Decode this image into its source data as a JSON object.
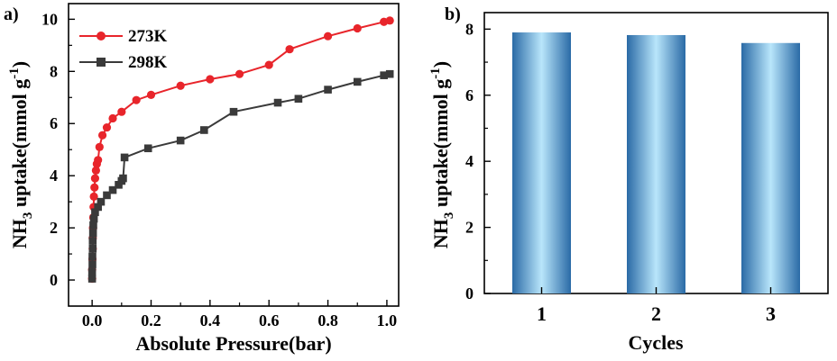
{
  "chart_data": [
    {
      "panel_label": "a)",
      "type": "line",
      "xlabel": "Absolute Pressure(bar)",
      "ylabel": {
        "main": "NH",
        "sub": "3",
        "rest": " uptake(mmol g",
        "sup": "-1",
        "end": ")"
      },
      "xlim": [
        -0.08,
        1.04
      ],
      "ylim": [
        -1.0,
        10.6
      ],
      "xticks": [
        0.0,
        0.2,
        0.4,
        0.6,
        0.8,
        1.0
      ],
      "xtick_labels": [
        "0.0",
        "0.2",
        "0.4",
        "0.6",
        "0.8",
        "1.0"
      ],
      "yticks": [
        0,
        2,
        4,
        6,
        8,
        10
      ],
      "ytick_labels": [
        "0",
        "2",
        "4",
        "6",
        "8",
        "10"
      ],
      "legend_position": "top-left",
      "series": [
        {
          "name": "273K",
          "marker": "circle",
          "color": "#e8252b",
          "x": [
            0.0,
            0.0,
            0.001,
            0.002,
            0.002,
            0.003,
            0.004,
            0.005,
            0.006,
            0.008,
            0.01,
            0.013,
            0.016,
            0.02,
            0.025,
            0.035,
            0.05,
            0.07,
            0.1,
            0.15,
            0.2,
            0.3,
            0.4,
            0.5,
            0.6,
            0.67,
            0.8,
            0.9,
            0.99,
            1.01
          ],
          "y": [
            0.05,
            0.4,
            0.8,
            1.2,
            1.6,
            2.0,
            2.4,
            2.8,
            3.2,
            3.55,
            3.9,
            4.2,
            4.45,
            4.6,
            5.1,
            5.55,
            5.85,
            6.2,
            6.45,
            6.9,
            7.1,
            7.45,
            7.7,
            7.9,
            8.25,
            8.85,
            9.35,
            9.65,
            9.9,
            9.95
          ]
        },
        {
          "name": "298K",
          "marker": "square",
          "color": "#3a3a3a",
          "x": [
            0.0,
            0.0,
            0.001,
            0.001,
            0.002,
            0.002,
            0.003,
            0.004,
            0.006,
            0.01,
            0.02,
            0.03,
            0.05,
            0.07,
            0.09,
            0.1,
            0.105,
            0.11,
            0.19,
            0.3,
            0.38,
            0.48,
            0.63,
            0.7,
            0.8,
            0.9,
            0.99,
            1.01
          ],
          "y": [
            0.05,
            0.3,
            0.6,
            0.9,
            1.2,
            1.5,
            1.8,
            2.1,
            2.35,
            2.6,
            2.8,
            3.0,
            3.25,
            3.45,
            3.65,
            3.8,
            3.9,
            4.7,
            5.05,
            5.35,
            5.75,
            6.45,
            6.8,
            6.95,
            7.3,
            7.6,
            7.85,
            7.9
          ]
        }
      ]
    },
    {
      "panel_label": "b)",
      "type": "bar",
      "xlabel": "Cycles",
      "ylabel": {
        "main": "NH",
        "sub": "3",
        "rest": " uptake(mmol g",
        "sup": "-1",
        "end": ")"
      },
      "categories": [
        "1",
        "2",
        "3"
      ],
      "values": [
        7.9,
        7.82,
        7.58
      ],
      "ylim": [
        0,
        8.5
      ],
      "yticks": [
        0,
        2,
        4,
        6,
        8
      ],
      "ytick_labels": [
        "0",
        "2",
        "4",
        "6",
        "8"
      ],
      "bar_gradient": [
        "#2a6aa6",
        "#b9e6fb",
        "#2a6aa6"
      ]
    }
  ]
}
